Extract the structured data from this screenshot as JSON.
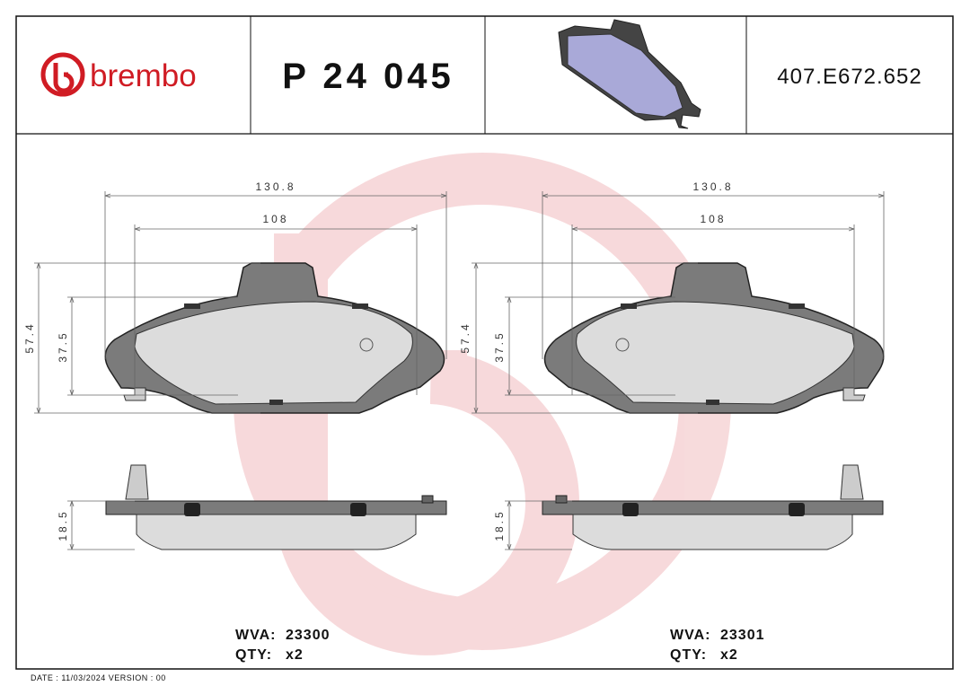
{
  "header": {
    "brand": "brembo",
    "part_number": "P 24 045",
    "code": "407.E672.652"
  },
  "drawings": [
    {
      "width_total": "130.8",
      "width_inner": "108",
      "height_total": "57.4",
      "height_inner": "37.5",
      "thickness": "18.5",
      "wva_label": "WVA:",
      "wva": "23300",
      "qty_label": "QTY:",
      "qty": "x2"
    },
    {
      "width_total": "130.8",
      "width_inner": "108",
      "height_total": "57.4",
      "height_inner": "37.5",
      "thickness": "18.5",
      "wva_label": "WVA:",
      "wva": "23301",
      "qty_label": "QTY:",
      "qty": "x2"
    }
  ],
  "footer": {
    "text": "DATE : 11/03/2024 VERSION : 00"
  }
}
